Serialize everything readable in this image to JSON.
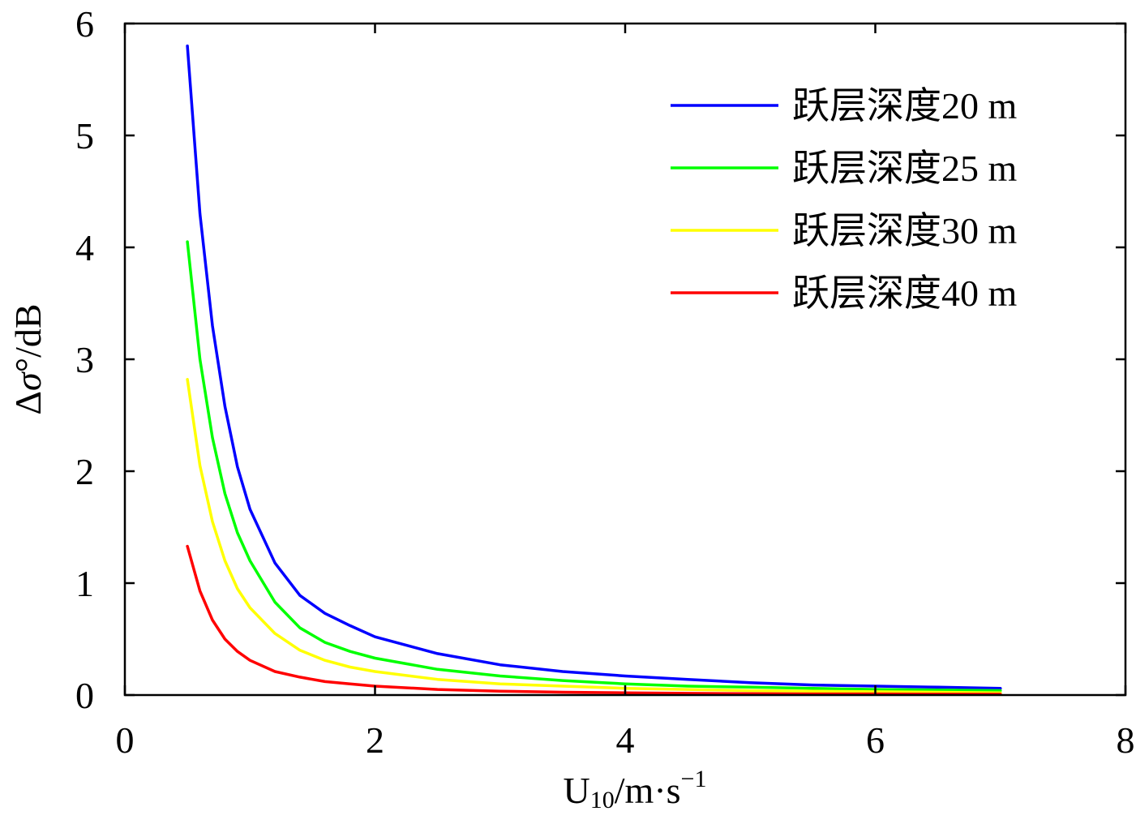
{
  "chart_data": {
    "type": "line",
    "xlabel": "U10/m·s−1",
    "xlabel_parts": {
      "base": "U",
      "sub": "10",
      "mid": "/m·s",
      "sup": "−1"
    },
    "ylabel": "Δσ°/dB",
    "ylabel_parts": {
      "delta": "Δ",
      "sigma": "σ",
      "deg": "°",
      "rest": "/dB"
    },
    "xlim": [
      0,
      8
    ],
    "ylim": [
      0,
      6
    ],
    "xticks": [
      "0",
      "2",
      "4",
      "6",
      "8"
    ],
    "yticks": [
      "0",
      "1",
      "2",
      "3",
      "4",
      "5",
      "6"
    ],
    "grid": false,
    "legend_position": "top-right",
    "x": [
      0.5,
      0.6,
      0.7,
      0.8,
      0.9,
      1.0,
      1.2,
      1.4,
      1.6,
      1.8,
      2.0,
      2.5,
      3.0,
      3.5,
      4.0,
      4.5,
      5.0,
      5.5,
      6.0,
      6.5,
      7.0
    ],
    "series": [
      {
        "name": "跃层深度20 m",
        "color": "#0000ff",
        "values": [
          5.8,
          4.3,
          3.3,
          2.58,
          2.04,
          1.66,
          1.18,
          0.89,
          0.73,
          0.62,
          0.52,
          0.37,
          0.27,
          0.21,
          0.17,
          0.14,
          0.11,
          0.09,
          0.08,
          0.07,
          0.06
        ]
      },
      {
        "name": "跃层深度25 m",
        "color": "#00ff00",
        "values": [
          4.05,
          3.0,
          2.3,
          1.8,
          1.45,
          1.2,
          0.83,
          0.6,
          0.47,
          0.39,
          0.33,
          0.23,
          0.17,
          0.13,
          0.1,
          0.08,
          0.07,
          0.06,
          0.05,
          0.045,
          0.04
        ]
      },
      {
        "name": "跃层深度30 m",
        "color": "#ffff00",
        "values": [
          2.82,
          2.05,
          1.55,
          1.2,
          0.95,
          0.78,
          0.55,
          0.4,
          0.31,
          0.25,
          0.21,
          0.14,
          0.1,
          0.08,
          0.06,
          0.05,
          0.04,
          0.035,
          0.03,
          0.025,
          0.02
        ]
      },
      {
        "name": "跃层深度40 m",
        "color": "#ff0000",
        "values": [
          1.33,
          0.93,
          0.67,
          0.5,
          0.39,
          0.31,
          0.21,
          0.16,
          0.12,
          0.1,
          0.08,
          0.05,
          0.035,
          0.025,
          0.02,
          0.015,
          0.012,
          0.01,
          0.01,
          0.008,
          0.007
        ]
      }
    ]
  }
}
